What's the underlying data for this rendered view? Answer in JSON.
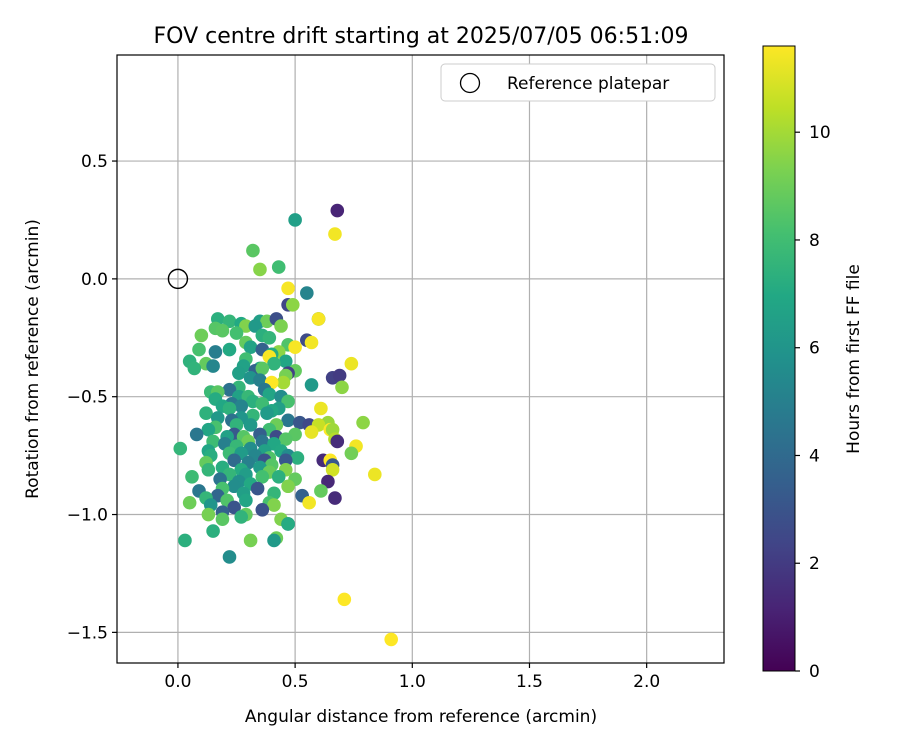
{
  "chart_data": {
    "type": "scatter",
    "title": "FOV centre drift starting at 2025/07/05 06:51:09",
    "xlabel": "Angular distance from reference (arcmin)",
    "ylabel": "Rotation from reference (arcmin)",
    "xlim": [
      -0.26,
      2.33
    ],
    "ylim": [
      -1.63,
      0.95
    ],
    "xticks": [
      0.0,
      0.5,
      1.0,
      1.5,
      2.0
    ],
    "xtick_labels": [
      "0.0",
      "0.5",
      "1.0",
      "1.5",
      "2.0"
    ],
    "yticks": [
      0.5,
      0.0,
      -0.5,
      -1.0,
      -1.5
    ],
    "ytick_labels": [
      "0.5",
      "0.0",
      "−0.5",
      "−1.0",
      "−1.5"
    ],
    "grid": true,
    "legend": {
      "position": "top-right",
      "entries": [
        "Reference platepar"
      ]
    },
    "reference_point": {
      "x": 0.0,
      "y": 0.0
    },
    "colorbar": {
      "label": "Hours from first FF file",
      "colormap": "viridis",
      "range": [
        0,
        11.6
      ],
      "ticks": [
        0,
        2,
        4,
        6,
        8,
        10
      ],
      "tick_labels": [
        "0",
        "2",
        "4",
        "6",
        "8",
        "10"
      ]
    },
    "points": [
      [
        0.68,
        0.29,
        1.2
      ],
      [
        0.5,
        0.25,
        6.5
      ],
      [
        0.67,
        0.19,
        11.4
      ],
      [
        0.32,
        0.12,
        8.6
      ],
      [
        0.43,
        0.05,
        8.0
      ],
      [
        0.35,
        0.04,
        9.5
      ],
      [
        0.47,
        -0.04,
        11.5
      ],
      [
        0.55,
        -0.06,
        5.2
      ],
      [
        0.47,
        -0.11,
        2.4
      ],
      [
        0.49,
        -0.11,
        9.6
      ],
      [
        0.6,
        -0.17,
        6.3
      ],
      [
        0.6,
        -0.17,
        11.5
      ],
      [
        0.17,
        -0.17,
        7.3
      ],
      [
        0.22,
        -0.18,
        7.6
      ],
      [
        0.35,
        -0.18,
        6.5
      ],
      [
        0.38,
        -0.18,
        9.0
      ],
      [
        0.42,
        -0.17,
        2.8
      ],
      [
        0.27,
        -0.19,
        7.0
      ],
      [
        0.29,
        -0.2,
        9.4
      ],
      [
        0.44,
        -0.2,
        9.3
      ],
      [
        0.16,
        -0.21,
        8.5
      ],
      [
        0.33,
        -0.2,
        6.2
      ],
      [
        0.1,
        -0.24,
        9.0
      ],
      [
        0.19,
        -0.22,
        8.6
      ],
      [
        0.25,
        -0.23,
        8.1
      ],
      [
        0.36,
        -0.24,
        7.3
      ],
      [
        0.39,
        -0.25,
        7.6
      ],
      [
        0.55,
        -0.26,
        2.6
      ],
      [
        0.57,
        -0.27,
        11.4
      ],
      [
        0.29,
        -0.27,
        8.8
      ],
      [
        0.47,
        -0.28,
        8.4
      ],
      [
        0.31,
        -0.29,
        6.7
      ],
      [
        0.5,
        -0.29,
        11.5
      ],
      [
        0.09,
        -0.3,
        8.2
      ],
      [
        0.16,
        -0.31,
        4.9
      ],
      [
        0.22,
        -0.3,
        7.0
      ],
      [
        0.36,
        -0.3,
        3.6
      ],
      [
        0.43,
        -0.31,
        9.6
      ],
      [
        0.4,
        -0.32,
        7.1
      ],
      [
        0.39,
        -0.33,
        11.5
      ],
      [
        0.29,
        -0.34,
        8.0
      ],
      [
        0.05,
        -0.35,
        7.4
      ],
      [
        0.12,
        -0.36,
        8.8
      ],
      [
        0.46,
        -0.35,
        6.8
      ],
      [
        0.41,
        -0.36,
        7.5
      ],
      [
        0.15,
        -0.37,
        5.3
      ],
      [
        0.28,
        -0.37,
        6.6
      ],
      [
        0.35,
        -0.38,
        7.0
      ],
      [
        0.07,
        -0.38,
        7.5
      ],
      [
        0.33,
        -0.39,
        3.7
      ],
      [
        0.36,
        -0.38,
        8.6
      ],
      [
        0.26,
        -0.4,
        6.5
      ],
      [
        0.5,
        -0.39,
        8.8
      ],
      [
        0.47,
        -0.4,
        2.2
      ],
      [
        0.46,
        -0.41,
        9.2
      ],
      [
        0.66,
        -0.42,
        2.2
      ],
      [
        0.69,
        -0.41,
        2.0
      ],
      [
        0.74,
        -0.36,
        11.3
      ],
      [
        0.31,
        -0.42,
        5.9
      ],
      [
        0.35,
        -0.43,
        5.0
      ],
      [
        0.45,
        -0.44,
        10.0
      ],
      [
        0.4,
        -0.44,
        11.7
      ],
      [
        0.57,
        -0.45,
        6.2
      ],
      [
        0.7,
        -0.46,
        9.6
      ],
      [
        0.26,
        -0.46,
        7.6
      ],
      [
        0.37,
        -0.47,
        4.6
      ],
      [
        0.22,
        -0.47,
        4.3
      ],
      [
        0.14,
        -0.48,
        7.8
      ],
      [
        0.17,
        -0.48,
        8.6
      ],
      [
        0.39,
        -0.49,
        6.8
      ],
      [
        0.26,
        -0.5,
        6.6
      ],
      [
        0.3,
        -0.5,
        7.7
      ],
      [
        0.44,
        -0.5,
        5.6
      ],
      [
        0.16,
        -0.51,
        7.1
      ],
      [
        0.32,
        -0.52,
        7.3
      ],
      [
        0.47,
        -0.52,
        8.2
      ],
      [
        0.23,
        -0.53,
        4.6
      ],
      [
        0.36,
        -0.53,
        7.9
      ],
      [
        0.19,
        -0.54,
        6.9
      ],
      [
        0.27,
        -0.54,
        5.2
      ],
      [
        0.22,
        -0.55,
        7.4
      ],
      [
        0.43,
        -0.55,
        6.5
      ],
      [
        0.61,
        -0.55,
        11.3
      ],
      [
        0.4,
        -0.56,
        6.9
      ],
      [
        0.38,
        -0.57,
        6.3
      ],
      [
        0.12,
        -0.57,
        7.4
      ],
      [
        0.32,
        -0.58,
        7.6
      ],
      [
        0.27,
        -0.59,
        6.0
      ],
      [
        0.17,
        -0.59,
        6.2
      ],
      [
        0.23,
        -0.6,
        4.3
      ],
      [
        0.47,
        -0.6,
        4.6
      ],
      [
        0.52,
        -0.61,
        3.1
      ],
      [
        0.64,
        -0.61,
        9.8
      ],
      [
        0.79,
        -0.61,
        9.6
      ],
      [
        0.31,
        -0.62,
        6.2
      ],
      [
        0.42,
        -0.62,
        9.0
      ],
      [
        0.25,
        -0.62,
        7.5
      ],
      [
        0.56,
        -0.62,
        2.5
      ],
      [
        0.6,
        -0.62,
        10.6
      ],
      [
        0.16,
        -0.63,
        8.2
      ],
      [
        0.65,
        -0.64,
        11.6
      ],
      [
        0.13,
        -0.64,
        6.8
      ],
      [
        0.39,
        -0.64,
        8.0
      ],
      [
        0.66,
        -0.64,
        9.9
      ],
      [
        0.57,
        -0.65,
        11.2
      ],
      [
        0.08,
        -0.66,
        4.6
      ],
      [
        0.24,
        -0.66,
        3.2
      ],
      [
        0.35,
        -0.66,
        3.5
      ],
      [
        0.5,
        -0.66,
        8.6
      ],
      [
        0.21,
        -0.67,
        6.6
      ],
      [
        0.28,
        -0.67,
        8.5
      ],
      [
        0.42,
        -0.67,
        2.6
      ],
      [
        0.46,
        -0.68,
        8.5
      ],
      [
        0.67,
        -0.68,
        10.3
      ],
      [
        0.15,
        -0.69,
        7.9
      ],
      [
        0.3,
        -0.69,
        9.0
      ],
      [
        0.36,
        -0.69,
        4.5
      ],
      [
        0.2,
        -0.7,
        5.0
      ],
      [
        0.41,
        -0.7,
        6.9
      ],
      [
        0.68,
        -0.69,
        1.5
      ],
      [
        0.25,
        -0.71,
        7.7
      ],
      [
        0.76,
        -0.71,
        11.4
      ],
      [
        0.31,
        -0.72,
        5.6
      ],
      [
        0.01,
        -0.72,
        7.6
      ],
      [
        0.37,
        -0.73,
        6.6
      ],
      [
        0.44,
        -0.73,
        7.0
      ],
      [
        0.13,
        -0.73,
        6.8
      ],
      [
        0.22,
        -0.74,
        7.9
      ],
      [
        0.27,
        -0.74,
        6.3
      ],
      [
        0.33,
        -0.75,
        5.3
      ],
      [
        0.47,
        -0.75,
        5.5
      ],
      [
        0.74,
        -0.74,
        9.1
      ],
      [
        0.14,
        -0.75,
        7.2
      ],
      [
        0.39,
        -0.76,
        8.4
      ],
      [
        0.51,
        -0.76,
        7.3
      ],
      [
        0.46,
        -0.77,
        3.2
      ],
      [
        0.37,
        -0.77,
        2.9
      ],
      [
        0.24,
        -0.77,
        4.0
      ],
      [
        0.62,
        -0.77,
        1.4
      ],
      [
        0.65,
        -0.77,
        11.6
      ],
      [
        0.12,
        -0.78,
        8.8
      ],
      [
        0.3,
        -0.78,
        5.0
      ],
      [
        0.4,
        -0.79,
        8.5
      ],
      [
        0.66,
        -0.79,
        3.2
      ],
      [
        0.19,
        -0.8,
        7.2
      ],
      [
        0.35,
        -0.8,
        6.3
      ],
      [
        0.27,
        -0.81,
        7.1
      ],
      [
        0.13,
        -0.81,
        7.6
      ],
      [
        0.46,
        -0.81,
        9.4
      ],
      [
        0.66,
        -0.81,
        10.8
      ],
      [
        0.39,
        -0.82,
        8.9
      ],
      [
        0.29,
        -0.83,
        6.4
      ],
      [
        0.22,
        -0.83,
        7.6
      ],
      [
        0.36,
        -0.84,
        8.1
      ],
      [
        0.06,
        -0.84,
        7.9
      ],
      [
        0.43,
        -0.84,
        7.3
      ],
      [
        0.84,
        -0.83,
        11.3
      ],
      [
        0.5,
        -0.85,
        8.8
      ],
      [
        0.18,
        -0.85,
        4.4
      ],
      [
        0.26,
        -0.86,
        5.7
      ],
      [
        0.31,
        -0.87,
        7.0
      ],
      [
        0.64,
        -0.86,
        1.3
      ],
      [
        0.47,
        -0.88,
        9.4
      ],
      [
        0.24,
        -0.88,
        5.6
      ],
      [
        0.34,
        -0.89,
        3.1
      ],
      [
        0.19,
        -0.89,
        8.2
      ],
      [
        0.09,
        -0.9,
        4.6
      ],
      [
        0.61,
        -0.9,
        8.8
      ],
      [
        0.41,
        -0.91,
        7.6
      ],
      [
        0.28,
        -0.91,
        6.5
      ],
      [
        0.17,
        -0.92,
        3.8
      ],
      [
        0.53,
        -0.92,
        3.6
      ],
      [
        0.67,
        -0.93,
        1.4
      ],
      [
        0.12,
        -0.93,
        7.6
      ],
      [
        0.29,
        -0.94,
        6.8
      ],
      [
        0.21,
        -0.94,
        8.4
      ],
      [
        0.39,
        -0.95,
        8.2
      ],
      [
        0.56,
        -0.95,
        11.4
      ],
      [
        0.05,
        -0.95,
        9.0
      ],
      [
        0.14,
        -0.96,
        6.0
      ],
      [
        0.41,
        -0.96,
        9.4
      ],
      [
        0.24,
        -0.97,
        3.0
      ],
      [
        0.36,
        -0.98,
        2.9
      ],
      [
        0.19,
        -0.99,
        3.6
      ],
      [
        0.29,
        -1.0,
        8.8
      ],
      [
        0.13,
        -1.0,
        9.2
      ],
      [
        0.27,
        -1.01,
        7.5
      ],
      [
        0.19,
        -1.02,
        8.6
      ],
      [
        0.44,
        -1.02,
        9.4
      ],
      [
        0.47,
        -1.04,
        4.5
      ],
      [
        0.47,
        -1.04,
        7.1
      ],
      [
        0.15,
        -1.07,
        7.3
      ],
      [
        0.42,
        -1.1,
        9.0
      ],
      [
        0.31,
        -1.11,
        9.2
      ],
      [
        0.03,
        -1.11,
        7.3
      ],
      [
        0.41,
        -1.11,
        6.2
      ],
      [
        0.22,
        -1.18,
        5.6
      ],
      [
        0.71,
        -1.36,
        11.6
      ],
      [
        0.91,
        -1.53,
        11.6
      ]
    ]
  }
}
